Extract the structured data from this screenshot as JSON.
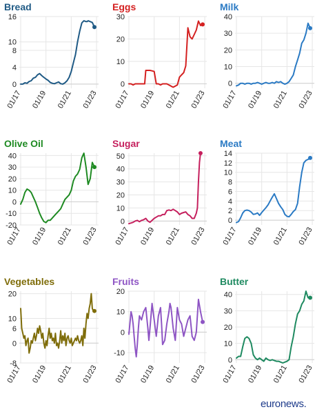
{
  "brand": {
    "name": "euronews."
  },
  "chart_data": [
    {
      "type": "line",
      "title": "Bread",
      "color": "#1f5a85",
      "x_ticks": [
        "01/17",
        "01/19",
        "01/21",
        "01/23"
      ],
      "y_ticks": [
        0,
        4,
        8,
        10,
        16
      ],
      "ylim": [
        -1,
        16
      ],
      "x": [
        0,
        2,
        4,
        6,
        8,
        10,
        12,
        14,
        16,
        18,
        20,
        22,
        24,
        26,
        28,
        30,
        32,
        34,
        36,
        38,
        40,
        42,
        44,
        46,
        48,
        50,
        52,
        54,
        56,
        58,
        60,
        62,
        63,
        64,
        66,
        68,
        70
      ],
      "values": [
        0,
        0,
        0.3,
        0.2,
        0.6,
        0.8,
        1.4,
        1.6,
        2.2,
        2.5,
        2.0,
        1.6,
        1.2,
        0.9,
        0.4,
        0.2,
        0.1,
        0.3,
        0.5,
        0.1,
        0,
        0.3,
        0.8,
        1.6,
        3.0,
        5,
        7,
        10,
        12.5,
        14.5,
        15,
        14.8,
        14.8,
        15,
        14.8,
        14.6,
        13.5
      ],
      "end_marker": true
    },
    {
      "type": "line",
      "title": "Eggs",
      "color": "#d42020",
      "x_ticks": [
        "01/17",
        "01/19",
        "01/21",
        "01/23"
      ],
      "y_ticks": [
        0,
        10,
        20,
        30
      ],
      "ylim": [
        -2,
        30
      ],
      "x": [
        0,
        2,
        4,
        6,
        8,
        10,
        12,
        14,
        15,
        16,
        18,
        20,
        22,
        24,
        26,
        28,
        30,
        32,
        34,
        36,
        38,
        40,
        42,
        44,
        46,
        48,
        50,
        52,
        54,
        56,
        58,
        60,
        62,
        64,
        66,
        68,
        70
      ],
      "values": [
        0,
        0,
        -0.5,
        0,
        0,
        0,
        0,
        0,
        0,
        6,
        6,
        6,
        5.8,
        5.5,
        0,
        0,
        -0.5,
        0,
        0,
        0,
        -0.5,
        -1,
        -1.5,
        -1,
        -0.5,
        3,
        4,
        5,
        8,
        25,
        21,
        20,
        22,
        24,
        28,
        26,
        26.5
      ],
      "end_marker": true
    },
    {
      "type": "line",
      "title": "Milk",
      "color": "#2a7ac4",
      "x_ticks": [
        "01/17",
        "01/19",
        "01/21",
        "01/23"
      ],
      "y_ticks": [
        0,
        10,
        20,
        30,
        40
      ],
      "ylim": [
        -3,
        40
      ],
      "x": [
        0,
        2,
        4,
        6,
        8,
        10,
        12,
        14,
        16,
        18,
        20,
        22,
        24,
        26,
        28,
        30,
        32,
        34,
        36,
        38,
        40,
        42,
        44,
        46,
        48,
        50,
        52,
        54,
        56,
        58,
        60,
        62,
        64,
        66,
        68,
        70
      ],
      "values": [
        -1.5,
        -1,
        0,
        0,
        -0.5,
        0,
        0,
        -0.5,
        0,
        0,
        0.5,
        0,
        -0.5,
        0,
        0.5,
        0,
        0,
        0.5,
        0,
        1,
        0.5,
        1,
        0,
        -0.5,
        0,
        1,
        3,
        5,
        10,
        14,
        18,
        24,
        26,
        30,
        36,
        33
      ],
      "end_marker": true
    },
    {
      "type": "line",
      "title": "Olive Oil",
      "color": "#1e8a22",
      "x_ticks": [
        "01/17",
        "01/19",
        "01/21",
        "01/23"
      ],
      "y_ticks": [
        -20,
        -10,
        0,
        10,
        20,
        30,
        40
      ],
      "ylim": [
        -20,
        42
      ],
      "x": [
        0,
        2,
        4,
        6,
        8,
        10,
        12,
        14,
        16,
        18,
        20,
        22,
        24,
        26,
        28,
        30,
        32,
        34,
        36,
        38,
        40,
        42,
        44,
        46,
        48,
        50,
        52,
        54,
        56,
        58,
        60,
        62,
        64,
        66,
        68,
        70
      ],
      "values": [
        -2,
        2,
        8,
        11,
        10,
        8,
        4,
        0,
        -5,
        -10,
        -14,
        -17,
        -18,
        -16,
        -16,
        -14,
        -12,
        -10,
        -8,
        -6,
        -2,
        2,
        4,
        6,
        10,
        18,
        22,
        24,
        28,
        38,
        42,
        30,
        15,
        20,
        34,
        30
      ],
      "end_marker": true
    },
    {
      "type": "line",
      "title": "Sugar",
      "color": "#c51f5d",
      "x_ticks": [
        "01/17",
        "01/19",
        "01/21",
        "01/23"
      ],
      "y_ticks": [
        0,
        10,
        20,
        30,
        40,
        50
      ],
      "ylim": [
        -3,
        52
      ],
      "x": [
        0,
        2,
        4,
        6,
        8,
        10,
        12,
        14,
        16,
        18,
        20,
        22,
        24,
        26,
        28,
        30,
        32,
        34,
        36,
        38,
        40,
        42,
        44,
        46,
        48,
        50,
        52,
        54,
        56,
        58,
        60,
        62,
        63,
        64,
        65,
        66,
        67,
        68
      ],
      "values": [
        -2,
        -1.5,
        -1,
        0,
        0.5,
        -0.5,
        0.5,
        1,
        2,
        0,
        -1,
        0.5,
        2,
        3,
        4,
        4,
        5,
        5,
        8,
        8.5,
        8,
        9,
        8,
        7,
        5,
        6,
        6.5,
        7,
        5,
        4,
        2,
        2,
        4,
        6,
        10,
        30,
        45,
        52
      ],
      "end_marker": true
    },
    {
      "type": "line",
      "title": "Meat",
      "color": "#2a7ac4",
      "x_ticks": [
        "01/17",
        "01/19",
        "01/21",
        "01/23"
      ],
      "y_ticks": [
        0,
        2,
        4,
        6,
        8,
        10,
        12,
        14
      ],
      "ylim": [
        -1,
        14
      ],
      "x": [
        0,
        2,
        4,
        6,
        8,
        10,
        12,
        14,
        16,
        18,
        20,
        22,
        24,
        26,
        28,
        30,
        32,
        34,
        36,
        38,
        40,
        42,
        44,
        46,
        48,
        50,
        52,
        54,
        56,
        58,
        60,
        62,
        64,
        66,
        68,
        70
      ],
      "values": [
        -0.5,
        -0.3,
        0.5,
        1.5,
        2,
        2.1,
        2.0,
        1.7,
        1.2,
        1.3,
        1.5,
        1.0,
        1.6,
        2.1,
        2.6,
        3.2,
        4,
        4.8,
        5.5,
        4.5,
        3.5,
        2.8,
        2.2,
        1.2,
        0.8,
        0.7,
        1.2,
        1.8,
        2.2,
        3.5,
        7,
        10,
        12,
        12.5,
        12.7,
        13
      ],
      "end_marker": true
    },
    {
      "type": "line",
      "title": "Vegetables",
      "color": "#7f6d0a",
      "x_ticks": [
        "01/17",
        "01/19",
        "01/21",
        "01/23"
      ],
      "y_ticks": [
        -8,
        0,
        6,
        10,
        20
      ],
      "ylim": [
        -8,
        21
      ],
      "x": [
        0,
        1,
        2,
        3,
        4,
        5,
        6,
        7,
        8,
        9,
        10,
        11,
        12,
        13,
        14,
        15,
        16,
        17,
        18,
        19,
        20,
        21,
        22,
        23,
        24,
        25,
        26,
        27,
        28,
        29,
        30,
        31,
        32,
        33,
        34,
        35,
        36,
        37,
        38,
        39,
        40,
        41,
        42,
        43,
        44,
        45,
        46,
        47,
        48,
        49,
        50,
        51,
        52,
        53,
        54,
        55,
        56,
        57,
        58,
        59,
        60,
        61,
        62,
        63,
        64,
        65,
        66,
        67,
        68,
        69,
        70
      ],
      "values": [
        14,
        6,
        4,
        2,
        3,
        -1,
        1,
        2,
        -4,
        -2,
        1,
        0,
        2,
        4,
        1,
        3,
        6,
        4,
        7,
        5,
        2,
        4,
        0,
        -2,
        1,
        -1,
        3,
        6,
        2,
        4,
        1,
        2,
        0,
        4,
        -1,
        0,
        -2,
        1,
        5,
        0,
        3,
        1,
        4,
        -1,
        2,
        3,
        1,
        0,
        2,
        -1,
        0,
        1,
        2,
        1,
        3,
        1,
        0,
        1,
        3,
        -1,
        6,
        2,
        8,
        12,
        10,
        14,
        16,
        20,
        14,
        13,
        13
      ],
      "end_marker": true
    },
    {
      "type": "line",
      "title": "Fruits",
      "color": "#8e55c4",
      "x_ticks": [
        "01/17",
        "01/19",
        "01/21",
        "01/23"
      ],
      "y_ticks": [
        -10,
        0,
        10,
        20
      ],
      "ylim": [
        -15,
        20
      ],
      "x": [
        0,
        2,
        3,
        4,
        5,
        6,
        7,
        8,
        9,
        10,
        12,
        14,
        16,
        18,
        19,
        20,
        22,
        24,
        26,
        28,
        30,
        31,
        32,
        34,
        36,
        38,
        39,
        40,
        42,
        44,
        46,
        48,
        50,
        52,
        54,
        56,
        58,
        60,
        62,
        64,
        66,
        68,
        70
      ],
      "values": [
        -1,
        10,
        8,
        4,
        -2,
        -8,
        -12,
        -6,
        2,
        8,
        6,
        10,
        12,
        2,
        -4,
        2,
        14,
        6,
        -2,
        8,
        12,
        4,
        -6,
        -4,
        4,
        10,
        14,
        12,
        2,
        -4,
        12,
        6,
        4,
        -2,
        2,
        6,
        8,
        -2,
        -4,
        0,
        16,
        10,
        5
      ],
      "end_marker": true
    },
    {
      "type": "line",
      "title": "Butter",
      "color": "#1e8a60",
      "x_ticks": [
        "01/17",
        "01/19",
        "01/21",
        "01/23"
      ],
      "y_ticks": [
        0,
        10,
        20,
        30,
        40
      ],
      "ylim": [
        -2,
        42
      ],
      "x": [
        0,
        2,
        4,
        6,
        8,
        10,
        12,
        14,
        16,
        18,
        20,
        22,
        24,
        26,
        28,
        30,
        32,
        34,
        36,
        38,
        40,
        42,
        44,
        46,
        48,
        50,
        52,
        54,
        56,
        58,
        60,
        62,
        64,
        66,
        68,
        70
      ],
      "values": [
        1,
        2,
        2,
        8,
        13,
        14,
        13,
        10,
        3,
        1,
        0,
        1,
        0,
        -1,
        1,
        0,
        -0.5,
        0,
        -0.5,
        -1,
        -1,
        -1.5,
        -2,
        -1.5,
        -1,
        0,
        8,
        14,
        22,
        28,
        30,
        34,
        36,
        42,
        38,
        38
      ],
      "end_marker": true
    }
  ]
}
